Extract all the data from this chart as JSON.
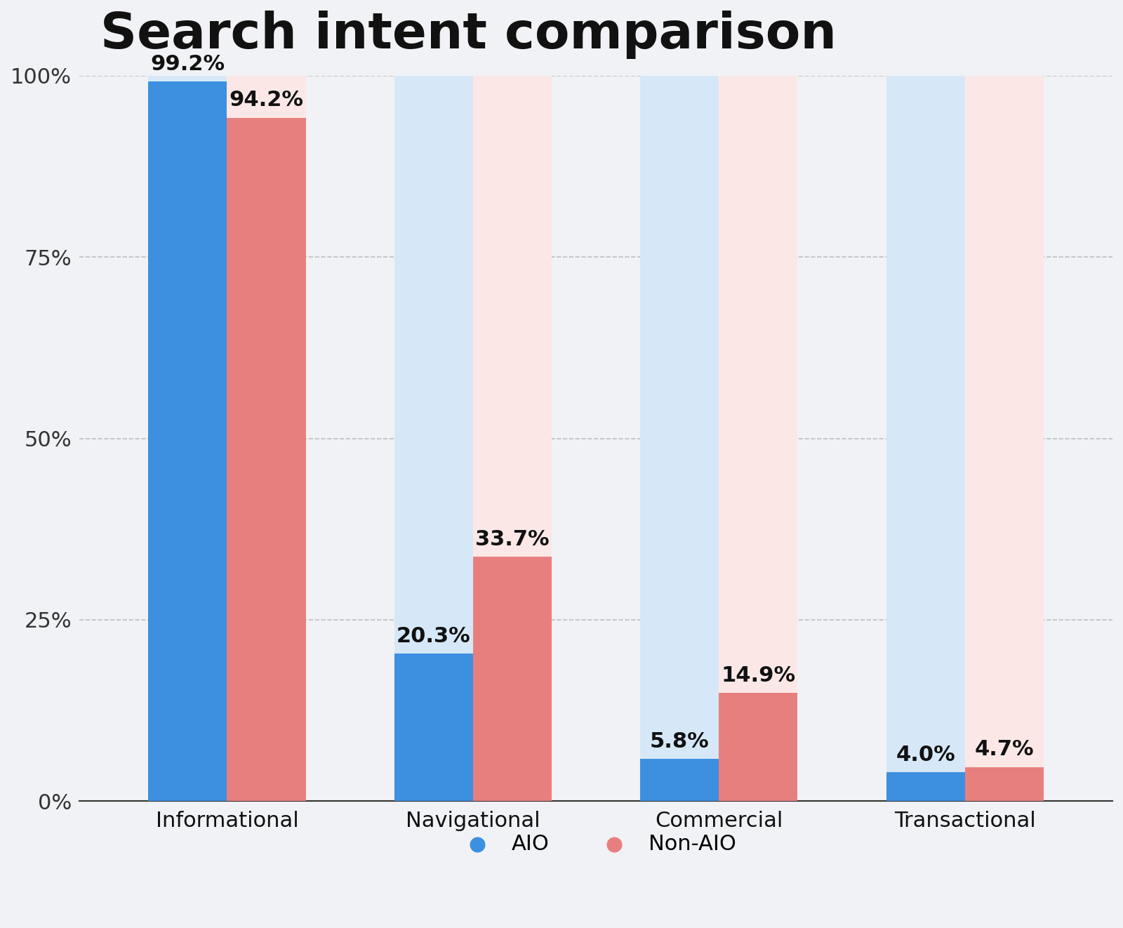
{
  "title": "Search intent comparison",
  "categories": [
    "Informational",
    "Navigational",
    "Commercial",
    "Transactional"
  ],
  "aio_values": [
    99.2,
    20.3,
    5.8,
    4.0
  ],
  "nonaio_values": [
    94.2,
    33.7,
    14.9,
    4.7
  ],
  "aio_color": "#3d8fe0",
  "nonaio_color": "#e87f7f",
  "aio_bg_color": "#d6e8f7",
  "nonaio_bg_color": "#fbe8e6",
  "background_color": "#f0f2f5",
  "title_fontsize": 52,
  "label_fontsize": 22,
  "tick_fontsize": 22,
  "value_fontsize": 22,
  "legend_fontsize": 22,
  "ylim": [
    0,
    100
  ],
  "yticks": [
    0,
    25,
    50,
    75,
    100
  ],
  "ytick_labels": [
    "0%",
    "25%",
    "50%",
    "75%",
    "100%"
  ],
  "bar_width": 0.32
}
